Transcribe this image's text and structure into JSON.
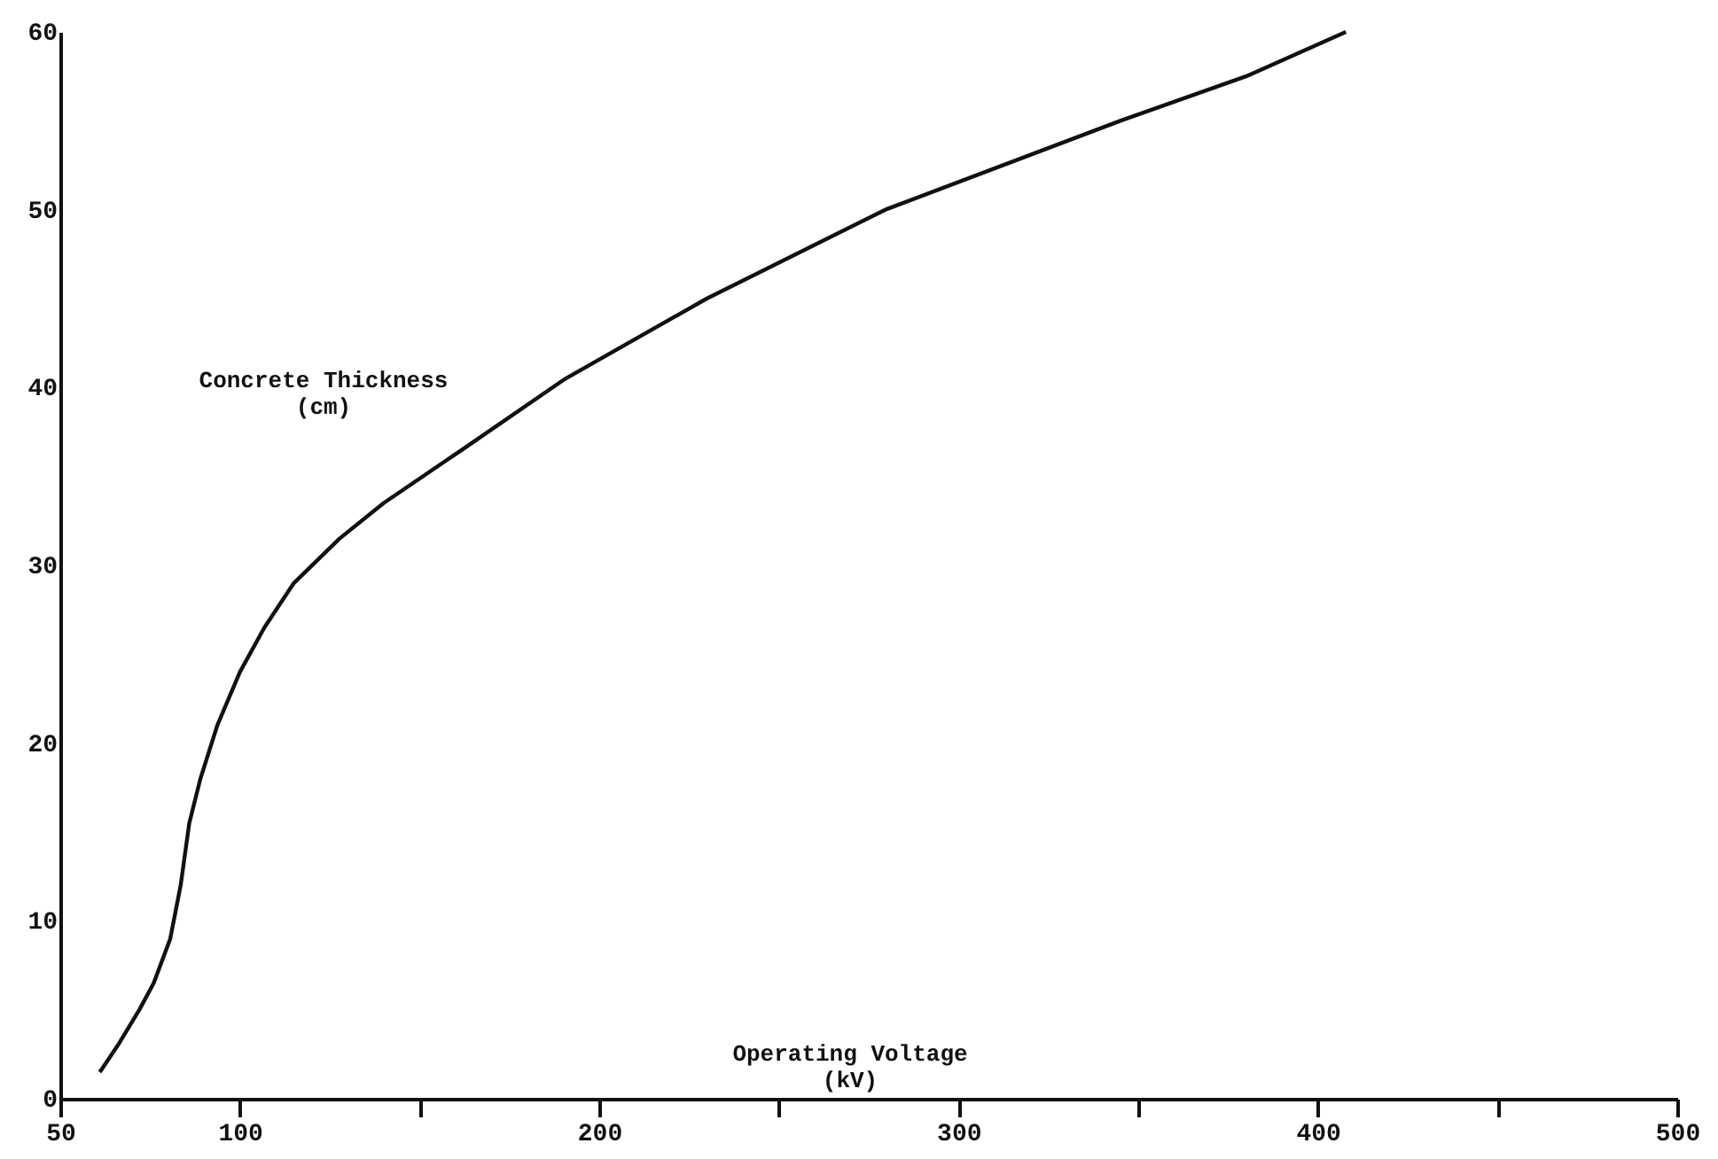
{
  "chart_data": {
    "type": "line",
    "xlabel": "Operating Voltage (kV)",
    "ylabel": "Concrete Thickness (cm)",
    "x": [
      61,
      66,
      72,
      76,
      80.6,
      83.5,
      85.9,
      89,
      93.7,
      100,
      106.8,
      115,
      127.7,
      140,
      161.8,
      190.6,
      229.9,
      279.6,
      345,
      380,
      407.8
    ],
    "series": [
      {
        "color": "#111111",
        "values": [
          1.5,
          3,
          5,
          6.5,
          9,
          12,
          15.5,
          18,
          21,
          24,
          26.5,
          29,
          31.5,
          33.5,
          36.5,
          40.5,
          45,
          50,
          55,
          57.5,
          60
        ]
      }
    ],
    "xlim": [
      50,
      500
    ],
    "xticks": [
      50,
      100,
      {
        "value": 150,
        "label": null
      },
      200,
      {
        "value": 250,
        "label": null
      },
      300,
      {
        "value": 350,
        "label": null
      },
      400,
      {
        "value": 450,
        "label": null
      },
      500
    ],
    "ylim": [
      0,
      60
    ],
    "yticks": [
      0,
      10,
      20,
      30,
      40,
      50,
      60
    ],
    "grid": false,
    "marker": "none",
    "line_style": "solid"
  }
}
